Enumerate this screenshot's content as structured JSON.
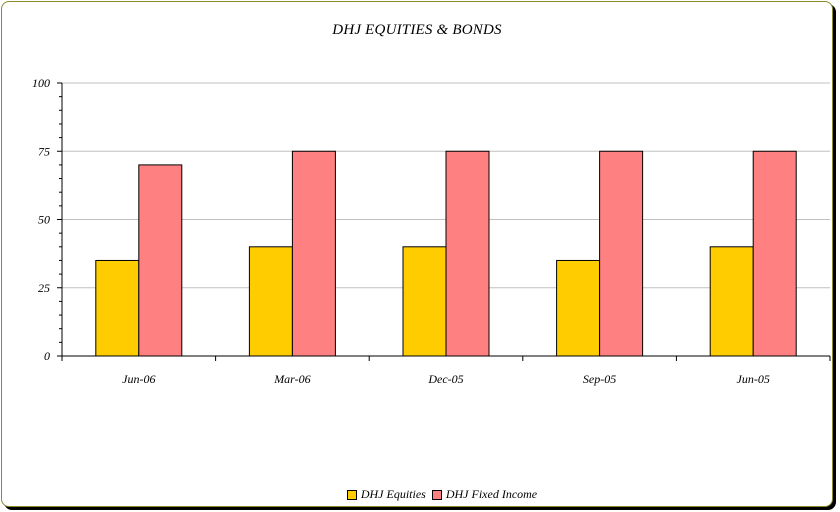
{
  "chart_data": {
    "type": "bar",
    "title": "DHJ EQUITIES & BONDS",
    "categories": [
      "Jun-06",
      "Mar-06",
      "Dec-05",
      "Sep-05",
      "Jun-05"
    ],
    "series": [
      {
        "name": "DHJ Equities",
        "values": [
          35,
          40,
          40,
          35,
          40
        ],
        "color": "#ffcc00"
      },
      {
        "name": "DHJ Fixed Income",
        "values": [
          70,
          75,
          75,
          75,
          75
        ],
        "color": "#ff8080"
      }
    ],
    "ylim": [
      0,
      100
    ],
    "yticks": [
      "0",
      "25",
      "50",
      "75",
      "100"
    ],
    "grid": true,
    "legend": "bottom"
  }
}
